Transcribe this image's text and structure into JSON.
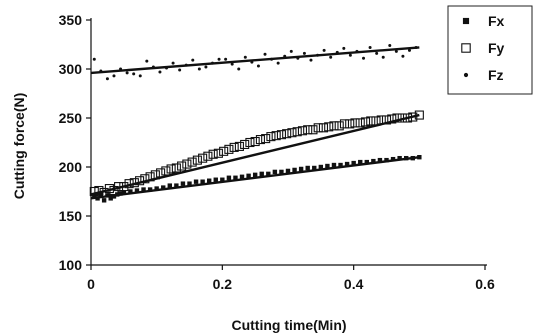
{
  "chart_data": {
    "type": "scatter",
    "title": "",
    "xlabel": "Cutting time(Min)",
    "ylabel": "Cutting force(N)",
    "xlim": [
      0,
      0.6
    ],
    "ylim": [
      100,
      350
    ],
    "x_ticks": [
      "0",
      "0.2",
      "0.4",
      "0.6"
    ],
    "x_tick_values": [
      0,
      0.2,
      0.4,
      0.6
    ],
    "y_ticks": [
      "100",
      "150",
      "200",
      "250",
      "300",
      "350"
    ],
    "y_tick_values": [
      100,
      150,
      200,
      250,
      300,
      350
    ],
    "grid": false,
    "legend_position": "top-right",
    "series": [
      {
        "name": "Fx",
        "marker": "filled-square",
        "color": "#111111",
        "points": [
          [
            0.005,
            170
          ],
          [
            0.01,
            168
          ],
          [
            0.015,
            172
          ],
          [
            0.02,
            166
          ],
          [
            0.025,
            171
          ],
          [
            0.03,
            168
          ],
          [
            0.035,
            170
          ],
          [
            0.04,
            172
          ],
          [
            0.045,
            173
          ],
          [
            0.05,
            174
          ],
          [
            0.06,
            175
          ],
          [
            0.07,
            176
          ],
          [
            0.08,
            177
          ],
          [
            0.09,
            177
          ],
          [
            0.1,
            178
          ],
          [
            0.11,
            179
          ],
          [
            0.12,
            181
          ],
          [
            0.13,
            181
          ],
          [
            0.14,
            183
          ],
          [
            0.15,
            183
          ],
          [
            0.16,
            185
          ],
          [
            0.17,
            185
          ],
          [
            0.18,
            186
          ],
          [
            0.19,
            187
          ],
          [
            0.2,
            187
          ],
          [
            0.21,
            189
          ],
          [
            0.22,
            189
          ],
          [
            0.23,
            190
          ],
          [
            0.24,
            191
          ],
          [
            0.25,
            192
          ],
          [
            0.26,
            193
          ],
          [
            0.27,
            193
          ],
          [
            0.28,
            195
          ],
          [
            0.29,
            195
          ],
          [
            0.3,
            196
          ],
          [
            0.31,
            197
          ],
          [
            0.32,
            198
          ],
          [
            0.33,
            199
          ],
          [
            0.34,
            199
          ],
          [
            0.35,
            200
          ],
          [
            0.36,
            201
          ],
          [
            0.37,
            202
          ],
          [
            0.38,
            202
          ],
          [
            0.39,
            203
          ],
          [
            0.4,
            204
          ],
          [
            0.41,
            205
          ],
          [
            0.42,
            205
          ],
          [
            0.43,
            206
          ],
          [
            0.44,
            207
          ],
          [
            0.45,
            207
          ],
          [
            0.46,
            208
          ],
          [
            0.47,
            209
          ],
          [
            0.48,
            209
          ],
          [
            0.49,
            209
          ],
          [
            0.5,
            210
          ]
        ]
      },
      {
        "name": "Fy",
        "marker": "open-square",
        "color": "#111111",
        "points": [
          [
            0.005,
            175
          ],
          [
            0.012,
            176
          ],
          [
            0.02,
            174
          ],
          [
            0.028,
            178
          ],
          [
            0.035,
            176
          ],
          [
            0.042,
            180
          ],
          [
            0.05,
            180
          ],
          [
            0.058,
            183
          ],
          [
            0.066,
            184
          ],
          [
            0.074,
            186
          ],
          [
            0.082,
            188
          ],
          [
            0.09,
            190
          ],
          [
            0.098,
            192
          ],
          [
            0.106,
            194
          ],
          [
            0.114,
            196
          ],
          [
            0.122,
            198
          ],
          [
            0.13,
            199
          ],
          [
            0.138,
            201
          ],
          [
            0.146,
            203
          ],
          [
            0.154,
            205
          ],
          [
            0.162,
            207
          ],
          [
            0.17,
            209
          ],
          [
            0.178,
            211
          ],
          [
            0.186,
            213
          ],
          [
            0.194,
            214
          ],
          [
            0.202,
            216
          ],
          [
            0.21,
            218
          ],
          [
            0.218,
            220
          ],
          [
            0.226,
            221
          ],
          [
            0.234,
            223
          ],
          [
            0.242,
            225
          ],
          [
            0.25,
            226
          ],
          [
            0.258,
            228
          ],
          [
            0.266,
            229
          ],
          [
            0.274,
            231
          ],
          [
            0.282,
            232
          ],
          [
            0.29,
            233
          ],
          [
            0.298,
            234
          ],
          [
            0.306,
            235
          ],
          [
            0.314,
            236
          ],
          [
            0.322,
            237
          ],
          [
            0.33,
            238
          ],
          [
            0.338,
            238
          ],
          [
            0.346,
            240
          ],
          [
            0.354,
            240
          ],
          [
            0.362,
            241
          ],
          [
            0.37,
            242
          ],
          [
            0.378,
            242
          ],
          [
            0.386,
            244
          ],
          [
            0.394,
            244
          ],
          [
            0.402,
            245
          ],
          [
            0.41,
            245
          ],
          [
            0.418,
            246
          ],
          [
            0.426,
            247
          ],
          [
            0.434,
            247
          ],
          [
            0.442,
            248
          ],
          [
            0.45,
            248
          ],
          [
            0.458,
            249
          ],
          [
            0.466,
            250
          ],
          [
            0.474,
            250
          ],
          [
            0.482,
            250
          ],
          [
            0.49,
            251
          ],
          [
            0.5,
            253
          ]
        ]
      },
      {
        "name": "Fz",
        "marker": "dot",
        "color": "#111111",
        "points": [
          [
            0.005,
            310
          ],
          [
            0.015,
            298
          ],
          [
            0.025,
            290
          ],
          [
            0.035,
            293
          ],
          [
            0.045,
            300
          ],
          [
            0.055,
            296
          ],
          [
            0.065,
            295
          ],
          [
            0.075,
            293
          ],
          [
            0.085,
            308
          ],
          [
            0.095,
            302
          ],
          [
            0.105,
            297
          ],
          [
            0.115,
            301
          ],
          [
            0.125,
            306
          ],
          [
            0.135,
            299
          ],
          [
            0.145,
            304
          ],
          [
            0.155,
            309
          ],
          [
            0.165,
            300
          ],
          [
            0.175,
            302
          ],
          [
            0.185,
            306
          ],
          [
            0.195,
            310
          ],
          [
            0.205,
            310
          ],
          [
            0.215,
            305
          ],
          [
            0.225,
            300
          ],
          [
            0.235,
            312
          ],
          [
            0.245,
            307
          ],
          [
            0.255,
            303
          ],
          [
            0.265,
            315
          ],
          [
            0.275,
            310
          ],
          [
            0.285,
            306
          ],
          [
            0.295,
            313
          ],
          [
            0.305,
            318
          ],
          [
            0.315,
            311
          ],
          [
            0.325,
            316
          ],
          [
            0.335,
            309
          ],
          [
            0.345,
            314
          ],
          [
            0.355,
            319
          ],
          [
            0.365,
            312
          ],
          [
            0.375,
            317
          ],
          [
            0.385,
            321
          ],
          [
            0.395,
            314
          ],
          [
            0.405,
            318
          ],
          [
            0.415,
            311
          ],
          [
            0.425,
            322
          ],
          [
            0.435,
            316
          ],
          [
            0.445,
            312
          ],
          [
            0.455,
            324
          ],
          [
            0.465,
            318
          ],
          [
            0.475,
            313
          ],
          [
            0.485,
            319
          ],
          [
            0.495,
            322
          ]
        ]
      }
    ],
    "trend_lines": [
      {
        "series": "Fx",
        "from": [
          0,
          168
        ],
        "to": [
          0.5,
          210
        ]
      },
      {
        "series": "Fy",
        "from": [
          0,
          172
        ],
        "to": [
          0.5,
          253
        ]
      },
      {
        "series": "Fz",
        "from": [
          0,
          296
        ],
        "to": [
          0.5,
          322
        ]
      }
    ]
  }
}
